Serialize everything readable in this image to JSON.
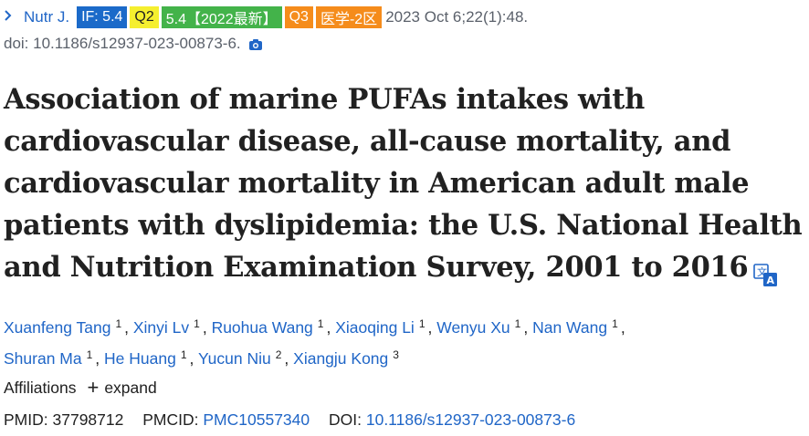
{
  "citation": {
    "journal": "Nutr J.",
    "badges": {
      "impact_factor": "IF: 5.4",
      "quartile": "Q2",
      "cas_score": "5.4【2022最新】",
      "cas_quartile": "Q3",
      "cas_zone": "医学-2区"
    },
    "date_volume": "2023 Oct 6;22(1):48.",
    "doi_line": "doi: 10.1186/s12937-023-00873-6."
  },
  "title": "Association of marine PUFAs intakes with cardiovascular disease, all-cause mortality, and cardiovascular mortality in American adult male patients with dyslipidemia: the U.S. National Health and Nutrition Examination Survey, 2001 to 2016",
  "authors": [
    {
      "name": "Xuanfeng Tang",
      "sup": "1"
    },
    {
      "name": "Xinyi Lv",
      "sup": "1"
    },
    {
      "name": "Ruohua Wang",
      "sup": "1"
    },
    {
      "name": "Xiaoqing Li",
      "sup": "1"
    },
    {
      "name": "Wenyu Xu",
      "sup": "1"
    },
    {
      "name": "Nan Wang",
      "sup": "1"
    },
    {
      "name": "Shuran Ma",
      "sup": "1"
    },
    {
      "name": "He Huang",
      "sup": "1"
    },
    {
      "name": "Yucun Niu",
      "sup": "2"
    },
    {
      "name": "Xiangju Kong",
      "sup": "3"
    }
  ],
  "affiliations": {
    "label": "Affiliations",
    "expand_label": "expand"
  },
  "identifiers": {
    "pmid_label": "PMID:",
    "pmid": "37798712",
    "pmcid_label": "PMCID:",
    "pmcid": "PMC10557340",
    "doi_label": "DOI:",
    "doi": "10.1186/s12937-023-00873-6"
  },
  "colors": {
    "link": "#2066c7",
    "if_badge": "#1b6ac9",
    "q2_badge": "#f5ef2f",
    "cas_badge": "#43b34a",
    "orange_badge": "#f58c1b"
  }
}
